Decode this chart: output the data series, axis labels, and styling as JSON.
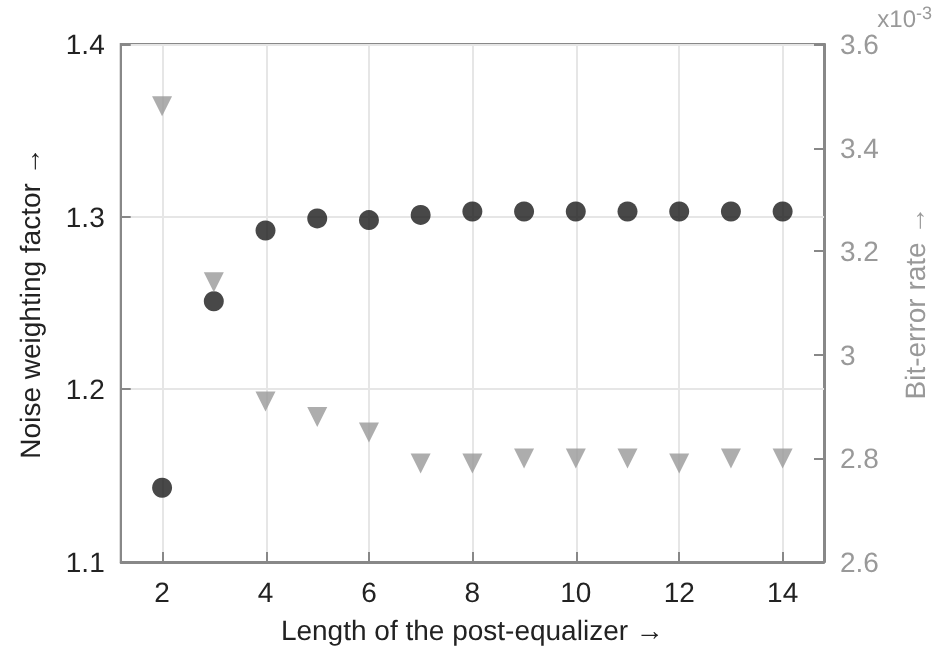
{
  "chart_data": {
    "type": "scatter",
    "xlabel": "Length of the post-equalizer →",
    "ylabel": "Noise weighting factor →",
    "y2label": "Bit-error rate →",
    "annotations": [
      "x10$^{-3}$"
    ],
    "x": [
      2,
      3,
      4,
      5,
      6,
      7,
      8,
      9,
      10,
      11,
      12,
      13,
      14
    ],
    "series": [
      {
        "color": "#1a1a1a",
        "marker": "circle",
        "values": [
          1.143,
          1.251,
          1.292,
          1.299,
          1.298,
          1.301,
          1.303,
          1.303,
          1.303,
          1.303,
          1.303,
          1.303,
          1.303
        ]
      },
      {
        "color": "#999999",
        "marker": "triangle",
        "axis": "y2",
        "values": [
          3.48,
          3.14,
          2.91,
          2.88,
          2.85,
          2.79,
          2.79,
          2.8,
          2.8,
          2.8,
          2.79,
          2.8,
          2.8
        ]
      }
    ],
    "xlim": [
      1.2,
      14.8
    ],
    "xticks": [
      2,
      4,
      6,
      8,
      10,
      12,
      14
    ],
    "ylim": [
      1.1,
      1.4
    ],
    "yticks": [
      1.1,
      1.2,
      1.3,
      1.4
    ],
    "y2lim": [
      2.6,
      3.6
    ],
    "y2ticks": [
      2.6,
      2.8,
      3,
      3.2,
      3.4,
      3.6
    ],
    "grid": true
  }
}
